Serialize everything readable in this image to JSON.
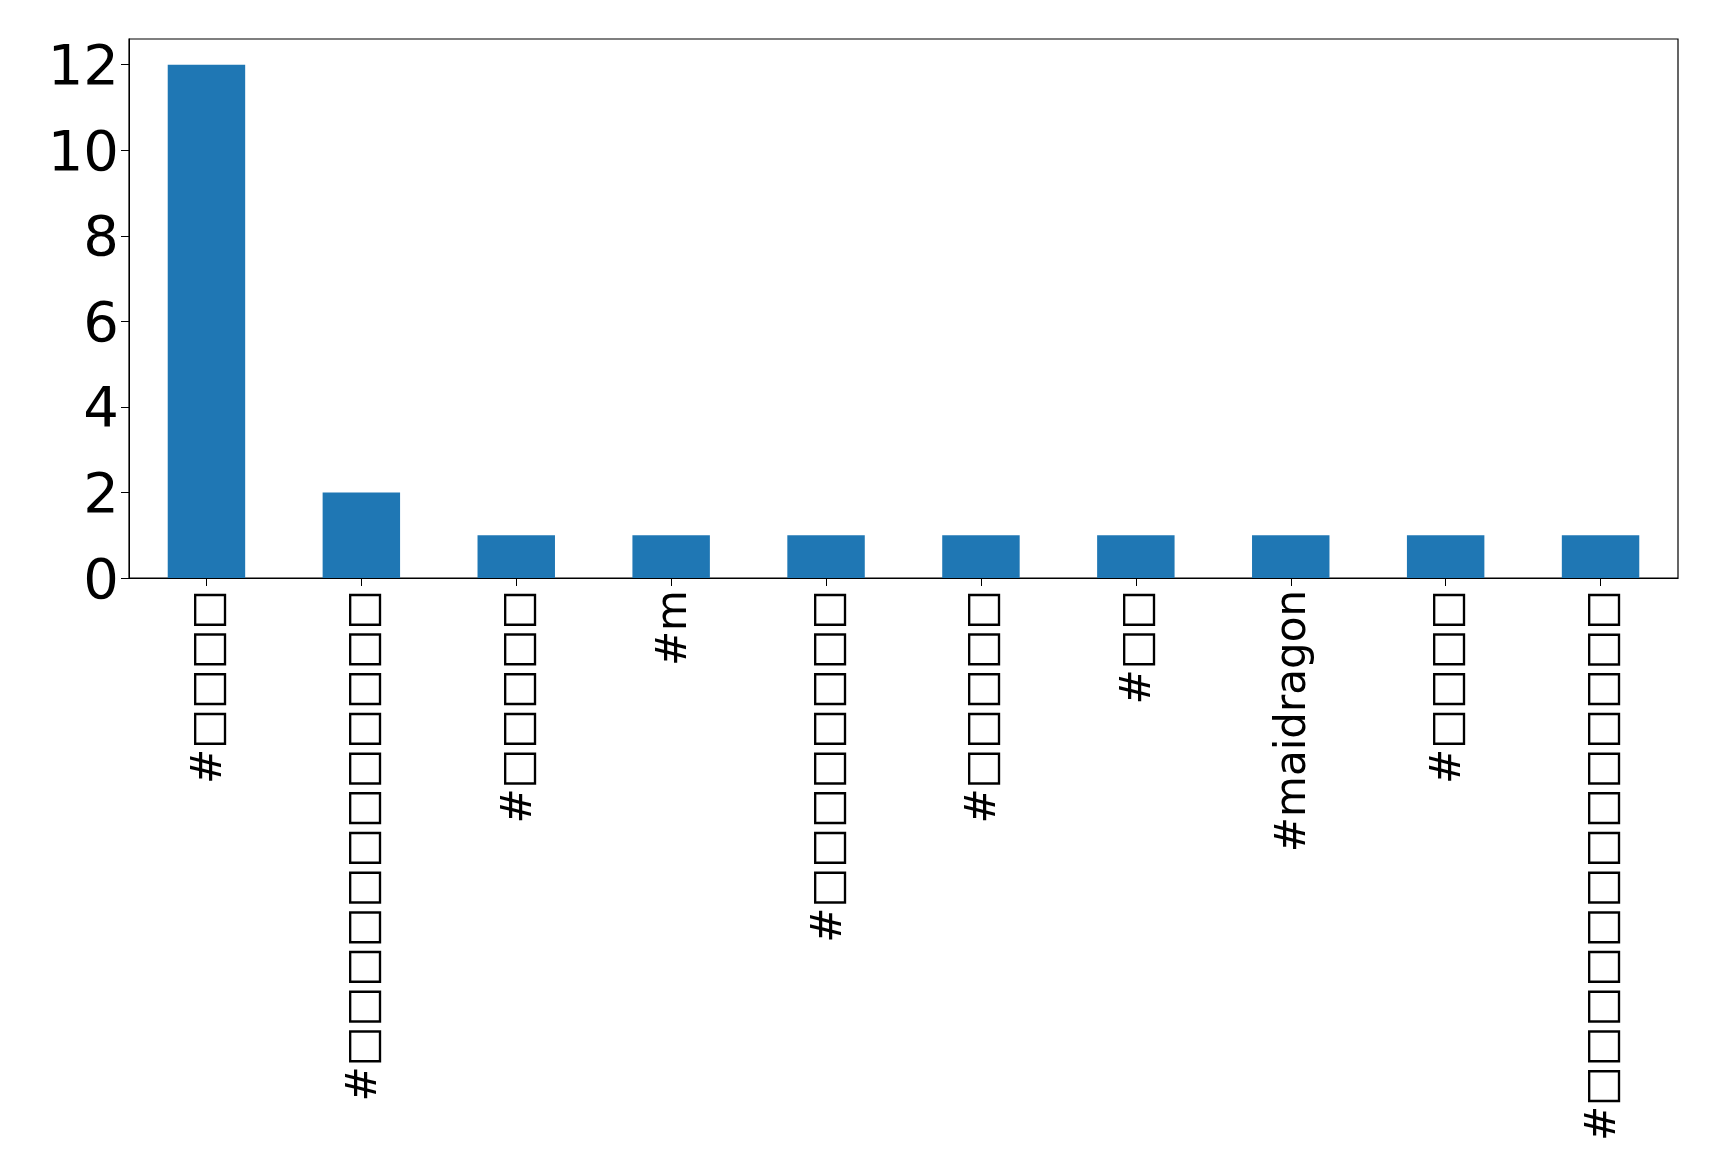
{
  "chart_data": {
    "type": "bar",
    "categories": [
      "#□□□□",
      "#□□□□□□□□□□□□",
      "#□□□□□",
      "#m",
      "#□□□□□□□□",
      "#□□□□□",
      "#□□",
      "#maidragon",
      "#□□□□",
      "#□□□□□□□□□□□□□"
    ],
    "values": [
      12,
      2,
      1,
      1,
      1,
      1,
      1,
      1,
      1,
      1
    ],
    "color": "#1f77b4",
    "ylim": [
      0,
      12.6
    ],
    "yticks": [
      0,
      2,
      4,
      6,
      8,
      10,
      12
    ]
  }
}
